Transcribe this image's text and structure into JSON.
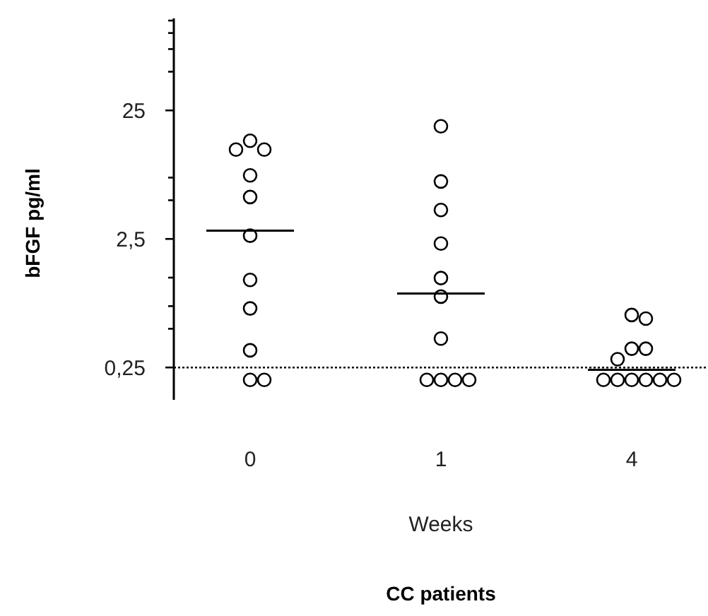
{
  "chart_data": {
    "type": "scatter",
    "title": "CC patients",
    "xlabel": "Weeks",
    "ylabel": "bFGF pg/ml",
    "categories": [
      "0",
      "1",
      "4"
    ],
    "log": "y",
    "ylim": [
      0.14,
      130
    ],
    "yticks": [
      {
        "value": 0.25,
        "label": "0,25"
      },
      {
        "value": 0.5,
        "label": null
      },
      {
        "value": 0.75,
        "label": null
      },
      {
        "value": 1.25,
        "label": null
      },
      {
        "value": 2.5,
        "label": "2,5"
      },
      {
        "value": 5,
        "label": null
      },
      {
        "value": 7.5,
        "label": null
      },
      {
        "value": 25,
        "label": "25"
      },
      {
        "value": 50,
        "label": null
      },
      {
        "value": 75,
        "label": null
      },
      {
        "value": 100,
        "label": null
      },
      {
        "value": 125,
        "label": null
      }
    ],
    "grid": false,
    "series": [
      {
        "marker": "circle",
        "color": "#000000",
        "x": [
          "0",
          "0",
          "0",
          "0",
          "0",
          "0",
          "0",
          "0",
          "0",
          "0",
          "0",
          "1",
          "1",
          "1",
          "1",
          "1",
          "1",
          "1",
          "1",
          "1",
          "1",
          "1",
          "4",
          "4",
          "4",
          "4",
          "4",
          "4",
          "4",
          "4",
          "4",
          "4",
          "4"
        ],
        "values": [
          14.5,
          12.4,
          12.4,
          7.8,
          5.3,
          2.65,
          1.2,
          0.72,
          0.34,
          0.2,
          0.2,
          18.8,
          7.0,
          4.2,
          2.3,
          1.24,
          0.89,
          0.42,
          0.2,
          0.2,
          0.2,
          0.2,
          0.64,
          0.6,
          0.35,
          0.35,
          0.29,
          0.2,
          0.2,
          0.2,
          0.2,
          0.2,
          0.2
        ]
      },
      {
        "type": "box",
        "color": "#000000",
        "boxes": [
          {
            "low": 2.9,
            "q1": 2.9,
            "median": 2.9,
            "q3": 2.9,
            "high": 2.9
          },
          {
            "low": 0.94,
            "q1": 0.94,
            "median": 0.94,
            "q3": 0.94,
            "high": 0.94
          },
          {
            "low": 0.24,
            "q1": 0.24,
            "median": 0.24,
            "q3": 0.24,
            "high": 0.24
          }
        ]
      }
    ],
    "ref_lines": [
      {
        "axis": "y",
        "value": 0.25,
        "line_style": "dotted",
        "color": "#000000"
      }
    ]
  }
}
